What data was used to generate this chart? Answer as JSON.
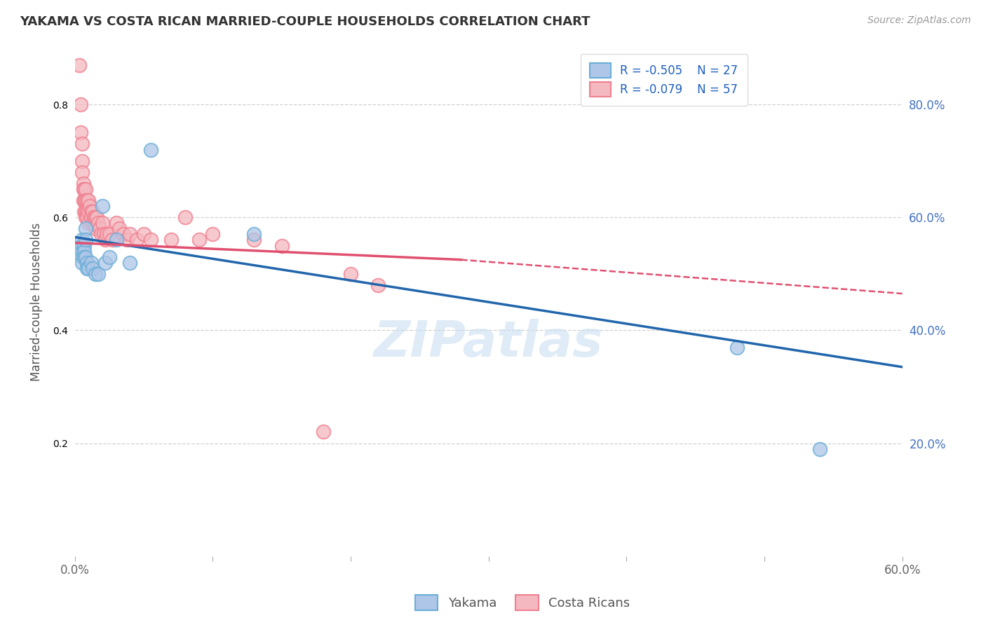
{
  "title": "YAKAMA VS COSTA RICAN MARRIED-COUPLE HOUSEHOLDS CORRELATION CHART",
  "source": "Source: ZipAtlas.com",
  "ylabel_label": "Married-couple Households",
  "xlim": [
    0.0,
    0.6
  ],
  "ylim": [
    0.0,
    0.9
  ],
  "xtick_positions": [
    0.0,
    0.1,
    0.2,
    0.3,
    0.4,
    0.5,
    0.6
  ],
  "xticklabels": [
    "0.0%",
    "",
    "",
    "",
    "",
    "",
    "60.0%"
  ],
  "ytick_right_positions": [
    0.2,
    0.4,
    0.6,
    0.8
  ],
  "yticklabels_right": [
    "20.0%",
    "40.0%",
    "60.0%",
    "80.0%"
  ],
  "legend_label1": "R = -0.505    N = 27",
  "legend_label2": "R = -0.079    N = 57",
  "yakama_color_edge": "#6baed6",
  "yakama_color_face": "#aec6e8",
  "cr_color_edge": "#f08090",
  "cr_color_face": "#f4b8c0",
  "trend_yakama_color": "#2166ac",
  "trend_cr_color": "#e05070",
  "watermark_color": "#c5dcef",
  "background_color": "#ffffff",
  "grid_color": "#cccccc",
  "text_color_blue": "#4472c4",
  "text_color_dark": "#444444",
  "legend_text_color": "#2060c0",
  "yakama_points_x": [
    0.005,
    0.005,
    0.005,
    0.005,
    0.005,
    0.007,
    0.007,
    0.007,
    0.008,
    0.008,
    0.008,
    0.009,
    0.009,
    0.01,
    0.012,
    0.013,
    0.015,
    0.017,
    0.02,
    0.022,
    0.025,
    0.03,
    0.04,
    0.055,
    0.13,
    0.48,
    0.54
  ],
  "yakama_points_y": [
    0.56,
    0.55,
    0.54,
    0.53,
    0.52,
    0.55,
    0.54,
    0.53,
    0.58,
    0.56,
    0.53,
    0.52,
    0.51,
    0.51,
    0.52,
    0.51,
    0.5,
    0.5,
    0.62,
    0.52,
    0.53,
    0.56,
    0.52,
    0.72,
    0.57,
    0.37,
    0.19
  ],
  "cr_points_x": [
    0.003,
    0.004,
    0.004,
    0.005,
    0.005,
    0.005,
    0.006,
    0.006,
    0.006,
    0.007,
    0.007,
    0.007,
    0.008,
    0.008,
    0.008,
    0.008,
    0.009,
    0.009,
    0.009,
    0.01,
    0.01,
    0.01,
    0.011,
    0.012,
    0.012,
    0.013,
    0.013,
    0.014,
    0.015,
    0.015,
    0.016,
    0.017,
    0.018,
    0.019,
    0.02,
    0.021,
    0.022,
    0.023,
    0.025,
    0.027,
    0.03,
    0.032,
    0.035,
    0.038,
    0.04,
    0.045,
    0.05,
    0.055,
    0.07,
    0.08,
    0.09,
    0.1,
    0.13,
    0.15,
    0.18,
    0.2,
    0.22
  ],
  "cr_points_y": [
    0.87,
    0.8,
    0.75,
    0.73,
    0.7,
    0.68,
    0.66,
    0.65,
    0.63,
    0.65,
    0.63,
    0.61,
    0.65,
    0.63,
    0.61,
    0.6,
    0.63,
    0.61,
    0.6,
    0.63,
    0.61,
    0.59,
    0.62,
    0.61,
    0.6,
    0.61,
    0.59,
    0.6,
    0.6,
    0.58,
    0.6,
    0.59,
    0.58,
    0.57,
    0.59,
    0.57,
    0.56,
    0.57,
    0.57,
    0.56,
    0.59,
    0.58,
    0.57,
    0.56,
    0.57,
    0.56,
    0.57,
    0.56,
    0.56,
    0.6,
    0.56,
    0.57,
    0.56,
    0.55,
    0.22,
    0.5,
    0.48
  ],
  "trend_yakama_x0": 0.0,
  "trend_yakama_x1": 0.6,
  "trend_yakama_y0": 0.565,
  "trend_yakama_y1": 0.335,
  "trend_cr_x0": 0.0,
  "trend_cr_solid_x1": 0.28,
  "trend_cr_dash_x1": 0.6,
  "trend_cr_y0": 0.555,
  "trend_cr_y1_solid": 0.525,
  "trend_cr_y1_dash": 0.465
}
